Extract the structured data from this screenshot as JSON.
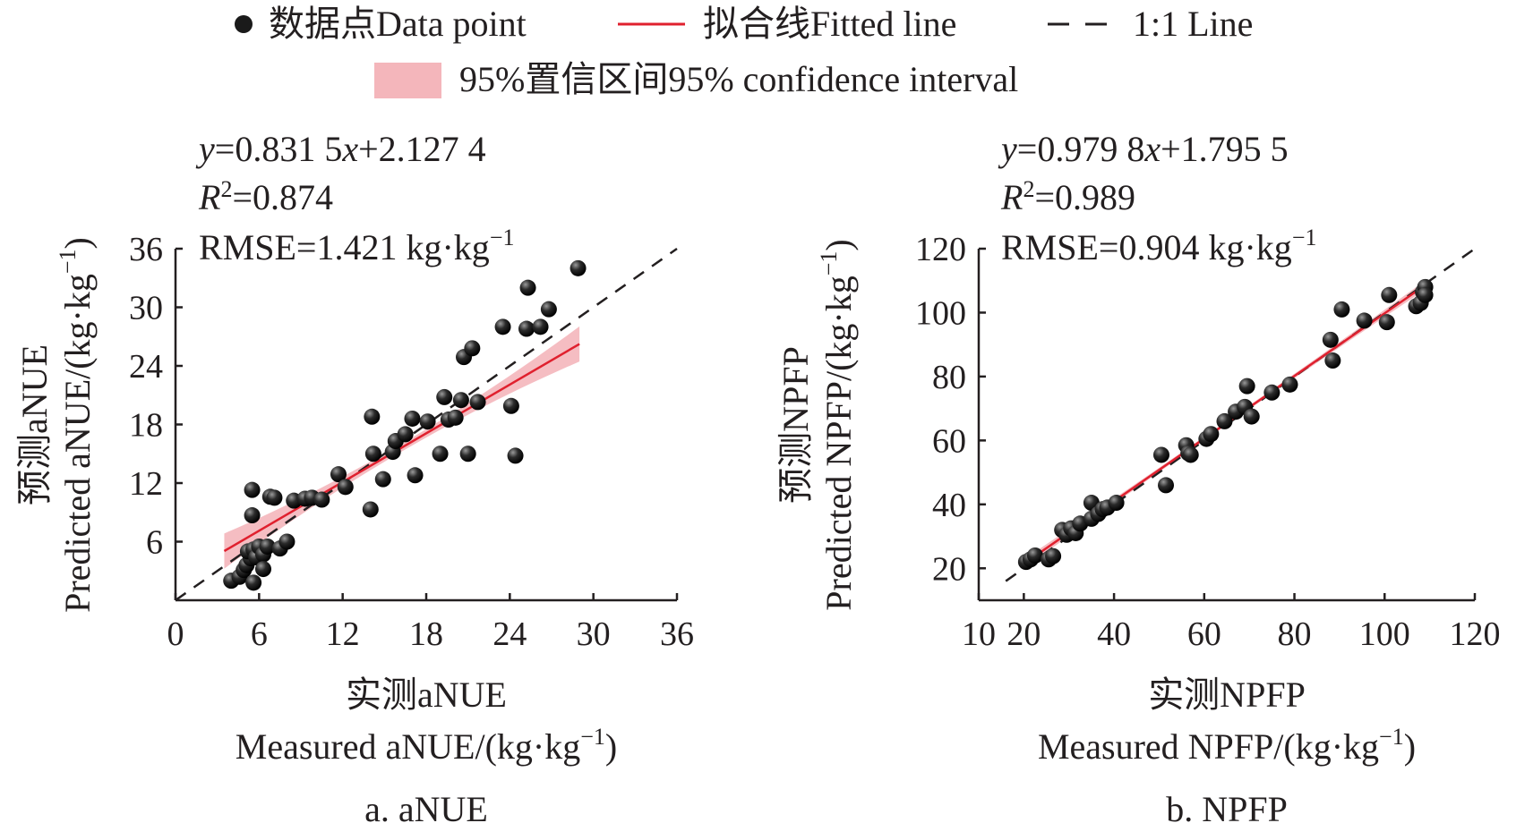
{
  "legend": {
    "items": [
      {
        "label": "数据点Data point",
        "kind": "point"
      },
      {
        "label": "拟合线Fitted line",
        "kind": "line",
        "color": "#e0202e"
      },
      {
        "label": "1:1 Line",
        "kind": "dash",
        "color": "#231f20"
      },
      {
        "label": "95%置信区间95% confidence interval",
        "kind": "band",
        "color": "#f4b6bb"
      }
    ]
  },
  "colors": {
    "fit_line": "#e0202e",
    "ci_band": "#f4b6bb",
    "point": "#1a1a1a",
    "axis": "#231f20"
  },
  "chart_data": [
    {
      "type": "scatter",
      "panel": "a. aNUE",
      "xlabel_cn": "实测aNUE",
      "xlabel_en": "Measured aNUE/(kg·kg",
      "xlabel_sup": "−1",
      "ylabel_cn": "预测aNUE",
      "ylabel_en": "Predicted aNUE/(kg·kg",
      "ylabel_sup": "−1",
      "xlim": [
        0,
        36
      ],
      "ylim": [
        0,
        36
      ],
      "xticks": [
        0,
        6,
        12,
        18,
        24,
        30,
        36
      ],
      "yticks": [
        6,
        12,
        18,
        24,
        30,
        36
      ],
      "equation": {
        "y": "y",
        "eq": "=0.831 5",
        "x": "x",
        "rest": "+2.127 4"
      },
      "r2": {
        "r": "R",
        "sup": "2",
        "value": "=0.874"
      },
      "rmse": {
        "text": "RMSE=1.421 kg·kg",
        "sup": "−1"
      },
      "fit": {
        "slope": 0.8315,
        "intercept": 2.1274,
        "x_range": [
          3.5,
          29
        ]
      },
      "identity_range": [
        0,
        36
      ],
      "ci_halfwidth": {
        "min": 0.4,
        "max": 1.8
      },
      "points": [
        [
          4.0,
          2.0
        ],
        [
          4.6,
          2.4
        ],
        [
          4.9,
          3.1
        ],
        [
          5.1,
          3.6
        ],
        [
          5.4,
          4.3
        ],
        [
          5.2,
          5.0
        ],
        [
          5.6,
          5.2
        ],
        [
          5.8,
          4.4
        ],
        [
          6.0,
          5.5
        ],
        [
          6.3,
          4.7
        ],
        [
          6.6,
          5.5
        ],
        [
          6.3,
          3.2
        ],
        [
          5.6,
          1.8
        ],
        [
          7.5,
          5.3
        ],
        [
          8.0,
          6.0
        ],
        [
          5.5,
          11.3
        ],
        [
          5.5,
          8.7
        ],
        [
          6.8,
          10.6
        ],
        [
          7.1,
          10.5
        ],
        [
          8.5,
          10.2
        ],
        [
          9.3,
          10.4
        ],
        [
          9.8,
          10.5
        ],
        [
          10.5,
          10.3
        ],
        [
          11.7,
          12.9
        ],
        [
          12.2,
          11.6
        ],
        [
          14.0,
          9.3
        ],
        [
          14.1,
          18.8
        ],
        [
          14.2,
          15.0
        ],
        [
          14.9,
          12.4
        ],
        [
          15.6,
          15.2
        ],
        [
          15.8,
          16.3
        ],
        [
          16.5,
          17.0
        ],
        [
          17.0,
          18.6
        ],
        [
          17.2,
          12.8
        ],
        [
          18.1,
          18.3
        ],
        [
          19.0,
          15.0
        ],
        [
          19.3,
          20.8
        ],
        [
          19.6,
          18.5
        ],
        [
          20.1,
          18.7
        ],
        [
          20.5,
          20.5
        ],
        [
          20.7,
          24.9
        ],
        [
          21.0,
          15.0
        ],
        [
          21.3,
          25.8
        ],
        [
          21.7,
          20.3
        ],
        [
          23.5,
          28.0
        ],
        [
          24.1,
          19.9
        ],
        [
          24.4,
          14.8
        ],
        [
          25.2,
          27.8
        ],
        [
          25.3,
          32.0
        ],
        [
          26.2,
          28.0
        ],
        [
          26.8,
          29.8
        ],
        [
          28.9,
          34.0
        ]
      ]
    },
    {
      "type": "scatter",
      "panel": "b. NPFP",
      "xlabel_cn": "实测NPFP",
      "xlabel_en": "Measured NPFP/(kg·kg",
      "xlabel_sup": "−1",
      "ylabel_cn": "预测NPFP",
      "ylabel_en": "Predicted NPFP/(kg·kg",
      "ylabel_sup": "−1",
      "xlim": [
        10,
        120
      ],
      "ylim": [
        10,
        120
      ],
      "xticks": [
        10,
        20,
        40,
        60,
        80,
        100,
        120
      ],
      "yticks": [
        20,
        40,
        60,
        80,
        100,
        120
      ],
      "equation": {
        "y": "y",
        "eq": "=0.979 8",
        "x": "x",
        "rest": "+1.795 5"
      },
      "r2": {
        "r": "R",
        "sup": "2",
        "value": "=0.989"
      },
      "rmse": {
        "text": "RMSE=0.904 kg·kg",
        "sup": "−1"
      },
      "fit": {
        "slope": 0.9798,
        "intercept": 1.7955,
        "x_range": [
          20,
          109
        ]
      },
      "identity_range": [
        16,
        121
      ],
      "ci_halfwidth": {
        "min": 0.6,
        "max": 1.4
      },
      "points": [
        [
          20.5,
          22.0
        ],
        [
          21.5,
          22.8
        ],
        [
          22.5,
          24.0
        ],
        [
          25.5,
          22.8
        ],
        [
          26.5,
          23.8
        ],
        [
          28.5,
          32.0
        ],
        [
          29.5,
          30.5
        ],
        [
          30.5,
          32.5
        ],
        [
          31.5,
          31.0
        ],
        [
          32.5,
          34.0
        ],
        [
          35.0,
          35.5
        ],
        [
          35.0,
          40.5
        ],
        [
          36.5,
          37.0
        ],
        [
          37.5,
          38.5
        ],
        [
          38.5,
          39.0
        ],
        [
          40.5,
          40.5
        ],
        [
          50.5,
          55.5
        ],
        [
          51.5,
          46.0
        ],
        [
          56.0,
          58.5
        ],
        [
          56.5,
          56.0
        ],
        [
          57.0,
          55.5
        ],
        [
          60.5,
          60.5
        ],
        [
          61.5,
          62.0
        ],
        [
          64.5,
          66.0
        ],
        [
          67.0,
          69.0
        ],
        [
          69.0,
          70.5
        ],
        [
          69.5,
          77.0
        ],
        [
          70.5,
          67.5
        ],
        [
          75.0,
          75.0
        ],
        [
          79.0,
          77.5
        ],
        [
          88.0,
          91.5
        ],
        [
          88.5,
          85.0
        ],
        [
          90.5,
          101.0
        ],
        [
          95.5,
          97.5
        ],
        [
          100.5,
          97.0
        ],
        [
          101.0,
          105.5
        ],
        [
          107.0,
          102.0
        ],
        [
          108.0,
          103.0
        ],
        [
          108.5,
          106.5
        ],
        [
          109.0,
          108.0
        ],
        [
          109.0,
          105.5
        ]
      ]
    }
  ]
}
